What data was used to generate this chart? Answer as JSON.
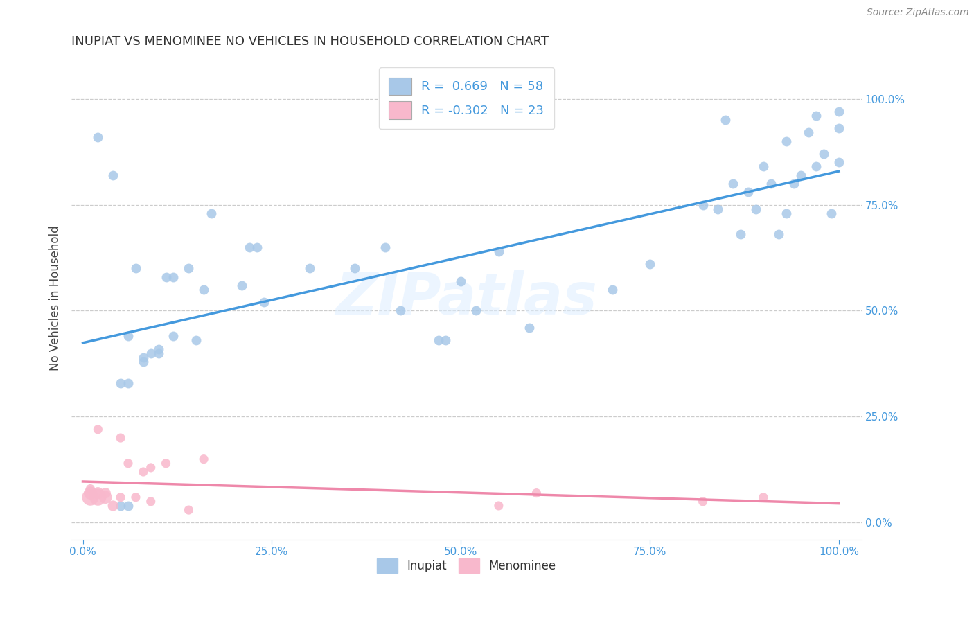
{
  "title": "INUPIAT VS MENOMINEE NO VEHICLES IN HOUSEHOLD CORRELATION CHART",
  "source": "Source: ZipAtlas.com",
  "ylabel": "No Vehicles in Household",
  "watermark": "ZIPatlas",
  "inupiat_R": 0.669,
  "inupiat_N": 58,
  "menominee_R": -0.302,
  "menominee_N": 23,
  "inupiat_color": "#a8c8e8",
  "menominee_color": "#f8b8cc",
  "inupiat_line_color": "#4499dd",
  "menominee_line_color": "#ee88aa",
  "background_color": "#ffffff",
  "grid_color": "#cccccc",
  "xlim": [
    -0.015,
    1.03
  ],
  "ylim": [
    -0.04,
    1.1
  ],
  "inupiat_x": [
    0.02,
    0.04,
    0.17,
    0.22,
    0.05,
    0.05,
    0.06,
    0.06,
    0.08,
    0.09,
    0.1,
    0.1,
    0.11,
    0.12,
    0.14,
    0.15,
    0.21,
    0.23,
    0.24,
    0.3,
    0.36,
    0.4,
    0.42,
    0.47,
    0.48,
    0.5,
    0.52,
    0.55,
    0.59,
    0.7,
    0.75,
    0.82,
    0.84,
    0.85,
    0.86,
    0.87,
    0.88,
    0.89,
    0.9,
    0.91,
    0.92,
    0.93,
    0.94,
    0.95,
    0.96,
    0.97,
    0.98,
    0.99,
    1.0,
    1.0,
    0.06,
    0.07,
    0.08,
    0.12,
    0.16,
    1.0,
    0.93,
    0.97
  ],
  "inupiat_y": [
    0.91,
    0.82,
    0.73,
    0.65,
    0.33,
    0.04,
    0.04,
    0.33,
    0.39,
    0.4,
    0.4,
    0.41,
    0.58,
    0.44,
    0.6,
    0.43,
    0.56,
    0.65,
    0.52,
    0.6,
    0.6,
    0.65,
    0.5,
    0.43,
    0.43,
    0.57,
    0.5,
    0.64,
    0.46,
    0.55,
    0.61,
    0.75,
    0.74,
    0.95,
    0.8,
    0.68,
    0.78,
    0.74,
    0.84,
    0.8,
    0.68,
    0.9,
    0.8,
    0.82,
    0.92,
    0.84,
    0.87,
    0.73,
    0.85,
    0.97,
    0.44,
    0.6,
    0.38,
    0.58,
    0.55,
    0.93,
    0.73,
    0.96
  ],
  "menominee_x": [
    0.01,
    0.01,
    0.01,
    0.02,
    0.02,
    0.02,
    0.03,
    0.03,
    0.04,
    0.05,
    0.05,
    0.06,
    0.07,
    0.08,
    0.09,
    0.09,
    0.11,
    0.14,
    0.16,
    0.55,
    0.6,
    0.82,
    0.9
  ],
  "menominee_y": [
    0.06,
    0.07,
    0.08,
    0.06,
    0.07,
    0.22,
    0.06,
    0.07,
    0.04,
    0.06,
    0.2,
    0.14,
    0.06,
    0.12,
    0.05,
    0.13,
    0.14,
    0.03,
    0.15,
    0.04,
    0.07,
    0.05,
    0.06
  ],
  "menominee_sizes": [
    300,
    180,
    90,
    300,
    150,
    90,
    180,
    120,
    120,
    90,
    90,
    90,
    90,
    90,
    90,
    90,
    90,
    90,
    90,
    90,
    90,
    90,
    90
  ]
}
